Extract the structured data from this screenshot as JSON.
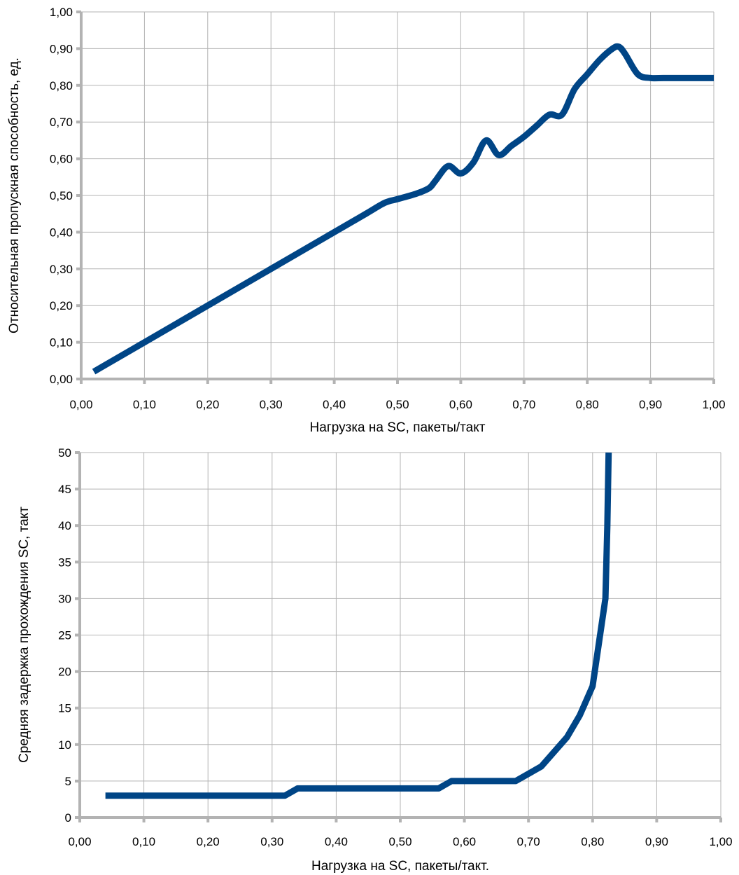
{
  "colors": {
    "series": "#004586",
    "grid": "#b3b3b3",
    "axis": "#b3b3b3"
  },
  "chart_data": [
    {
      "type": "line",
      "title": "",
      "xlabel": "Нагрузка на SC, пакеты/такт",
      "ylabel": "Относительная пропускная способность, ед.",
      "xlim": [
        0,
        1
      ],
      "ylim": [
        0,
        1
      ],
      "grid": true,
      "x_ticks": [
        "0,00",
        "0,10",
        "0,20",
        "0,30",
        "0,40",
        "0,50",
        "0,60",
        "0,70",
        "0,80",
        "0,90",
        "1,00"
      ],
      "y_ticks": [
        "0,00",
        "0,10",
        "0,20",
        "0,30",
        "0,40",
        "0,50",
        "0,60",
        "0,70",
        "0,80",
        "0,90",
        "1,00"
      ],
      "series": [
        {
          "x": [
            0.02,
            0.04,
            0.1,
            0.2,
            0.3,
            0.4,
            0.45,
            0.48,
            0.5,
            0.53,
            0.55,
            0.56,
            0.58,
            0.6,
            0.62,
            0.64,
            0.66,
            0.68,
            0.7,
            0.72,
            0.74,
            0.76,
            0.78,
            0.8,
            0.82,
            0.84,
            0.85,
            0.86,
            0.88,
            0.9,
            0.92,
            1.0
          ],
          "y": [
            0.02,
            0.04,
            0.1,
            0.2,
            0.3,
            0.4,
            0.45,
            0.48,
            0.49,
            0.505,
            0.52,
            0.54,
            0.58,
            0.56,
            0.59,
            0.65,
            0.61,
            0.635,
            0.66,
            0.69,
            0.72,
            0.72,
            0.79,
            0.83,
            0.87,
            0.9,
            0.905,
            0.885,
            0.83,
            0.82,
            0.82,
            0.82
          ]
        }
      ]
    },
    {
      "type": "line",
      "title": "",
      "xlabel": "Нагрузка на SC, пакеты/такт.",
      "ylabel": "Средняя задержка прохождения SC, такт",
      "xlim": [
        0,
        1
      ],
      "ylim": [
        0,
        50
      ],
      "grid": true,
      "x_ticks": [
        "0,00",
        "0,10",
        "0,20",
        "0,30",
        "0,40",
        "0,50",
        "0,60",
        "0,70",
        "0,80",
        "0,90",
        "1,00"
      ],
      "y_ticks": [
        "0",
        "5",
        "10",
        "15",
        "20",
        "25",
        "30",
        "35",
        "40",
        "45",
        "50"
      ],
      "series": [
        {
          "x": [
            0.04,
            0.32,
            0.34,
            0.56,
            0.58,
            0.68,
            0.72,
            0.76,
            0.78,
            0.8,
            0.81,
            0.82,
            0.823,
            0.825
          ],
          "y": [
            3,
            3,
            4,
            4,
            5,
            5,
            7,
            11,
            14,
            18,
            24,
            30,
            40,
            50
          ]
        }
      ]
    }
  ]
}
